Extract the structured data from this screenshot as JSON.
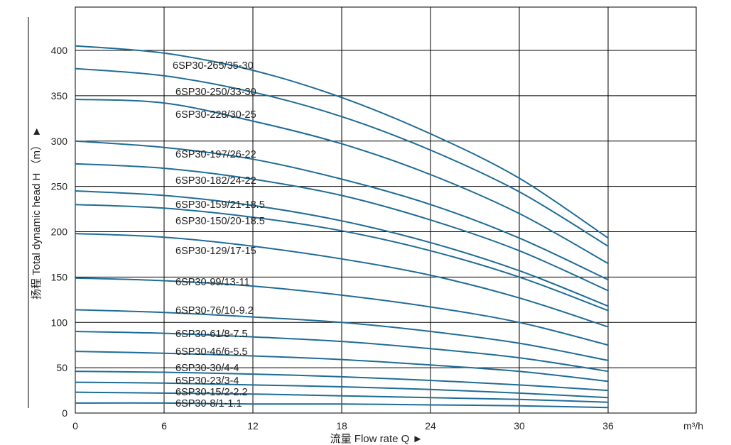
{
  "chart_data": {
    "type": "line",
    "xlabel": "流量 Flow rate Q ►",
    "ylabel": "扬程 Total dynamic head H （m） ►",
    "x_unit": "m³/h",
    "xlim": [
      0,
      36
    ],
    "ylim": [
      0,
      450
    ],
    "x_ticks": [
      0,
      6,
      12,
      18,
      24,
      30,
      36
    ],
    "y_ticks": [
      0,
      50,
      100,
      150,
      200,
      250,
      300,
      350,
      400
    ],
    "grid": true,
    "curve_color": "#1f6c96",
    "series": [
      {
        "name": "6SP30-265/35-30",
        "x": [
          0,
          6,
          12,
          18,
          24,
          30,
          36
        ],
        "y": [
          405,
          397,
          378,
          348,
          308,
          259,
          193
        ]
      },
      {
        "name": "6SP30-250/33-30",
        "x": [
          0,
          6,
          12,
          18,
          24,
          30,
          36
        ],
        "y": [
          380,
          372,
          354,
          327,
          290,
          244,
          184
        ]
      },
      {
        "name": "6SP30-228/30-25",
        "x": [
          0,
          6,
          12,
          18,
          24,
          30,
          36
        ],
        "y": [
          346,
          342,
          322,
          297,
          263,
          220,
          165
        ]
      },
      {
        "name": "6SP30-197/26-22",
        "x": [
          0,
          6,
          12,
          18,
          24,
          30,
          36
        ],
        "y": [
          300,
          293,
          280,
          258,
          230,
          193,
          147
        ]
      },
      {
        "name": "6SP30-182/24-22",
        "x": [
          0,
          6,
          12,
          18,
          24,
          30,
          36
        ],
        "y": [
          275,
          270,
          258,
          240,
          213,
          179,
          135
        ]
      },
      {
        "name": "6SP30-159/21-18.5",
        "x": [
          0,
          6,
          12,
          18,
          24,
          30,
          36
        ],
        "y": [
          245,
          240,
          229,
          212,
          188,
          157,
          118
        ]
      },
      {
        "name": "6SP30-150/20-18.5",
        "x": [
          0,
          6,
          12,
          18,
          24,
          30,
          36
        ],
        "y": [
          230,
          226,
          216,
          201,
          179,
          150,
          113
        ]
      },
      {
        "name": "6SP30-129/17-15",
        "x": [
          0,
          6,
          12,
          18,
          24,
          30,
          36
        ],
        "y": [
          198,
          194,
          184,
          170,
          152,
          127,
          95
        ]
      },
      {
        "name": "6SP30-99/13-11",
        "x": [
          0,
          6,
          12,
          18,
          24,
          30,
          36
        ],
        "y": [
          149,
          146,
          140,
          130,
          117,
          100,
          75
        ]
      },
      {
        "name": "6SP30-76/10-9.2",
        "x": [
          0,
          6,
          12,
          18,
          24,
          30,
          36
        ],
        "y": [
          114,
          111,
          106,
          100,
          90,
          77,
          58
        ]
      },
      {
        "name": "6SP30-61/8-7.5",
        "x": [
          0,
          6,
          12,
          18,
          24,
          30,
          36
        ],
        "y": [
          90,
          88,
          84,
          79,
          71,
          61,
          46
        ]
      },
      {
        "name": "6SP30-46/6-5.5",
        "x": [
          0,
          6,
          12,
          18,
          24,
          30,
          36
        ],
        "y": [
          68,
          66,
          63,
          59,
          53,
          46,
          35
        ]
      },
      {
        "name": "6SP30-30/4-4",
        "x": [
          0,
          6,
          12,
          18,
          24,
          30,
          36
        ],
        "y": [
          46,
          45,
          43,
          40,
          36,
          31,
          25
        ]
      },
      {
        "name": "6SP30-23/3-4",
        "x": [
          0,
          6,
          12,
          18,
          24,
          30,
          36
        ],
        "y": [
          34,
          33,
          31,
          29,
          26,
          22,
          17
        ]
      },
      {
        "name": "6SP30-15/2-2.2",
        "x": [
          0,
          6,
          12,
          18,
          24,
          30,
          36
        ],
        "y": [
          23,
          22,
          21,
          19,
          17,
          15,
          12
        ]
      },
      {
        "name": "6SP30-8/1-1.1",
        "x": [
          0,
          6,
          12,
          18,
          24,
          30,
          36
        ],
        "y": [
          11,
          11,
          10,
          10,
          9,
          8,
          6
        ]
      }
    ]
  }
}
